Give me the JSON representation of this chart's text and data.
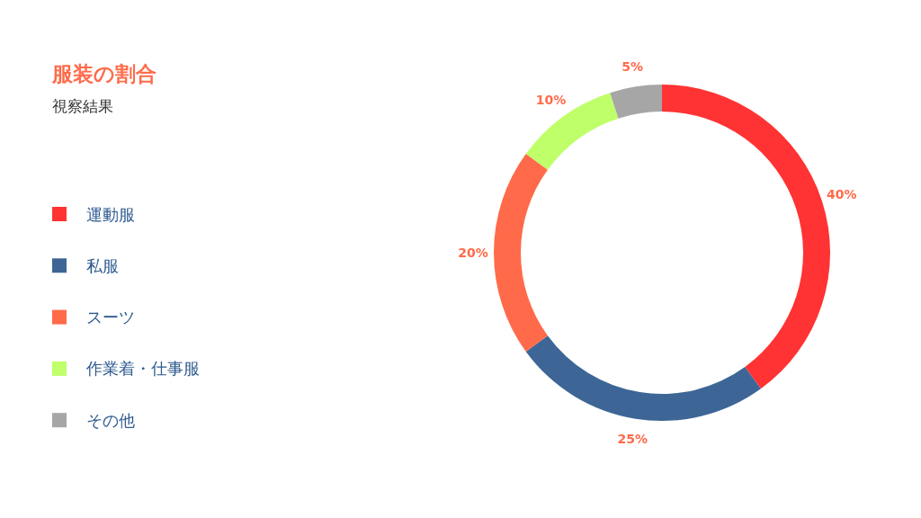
{
  "chart_data": {
    "type": "donut",
    "title": "服装の割合",
    "subtitle": "視察結果",
    "categories": [
      "運動服",
      "私服",
      "スーツ",
      "作業着・仕事服",
      "その他"
    ],
    "values": [
      40,
      25,
      20,
      10,
      5
    ],
    "colors": [
      "#ff3333",
      "#3d6696",
      "#ff6b4a",
      "#bfff6a",
      "#a6a6a6"
    ],
    "value_labels": [
      "40%",
      "25%",
      "20%",
      "10%",
      "5%"
    ],
    "legend": "left"
  }
}
